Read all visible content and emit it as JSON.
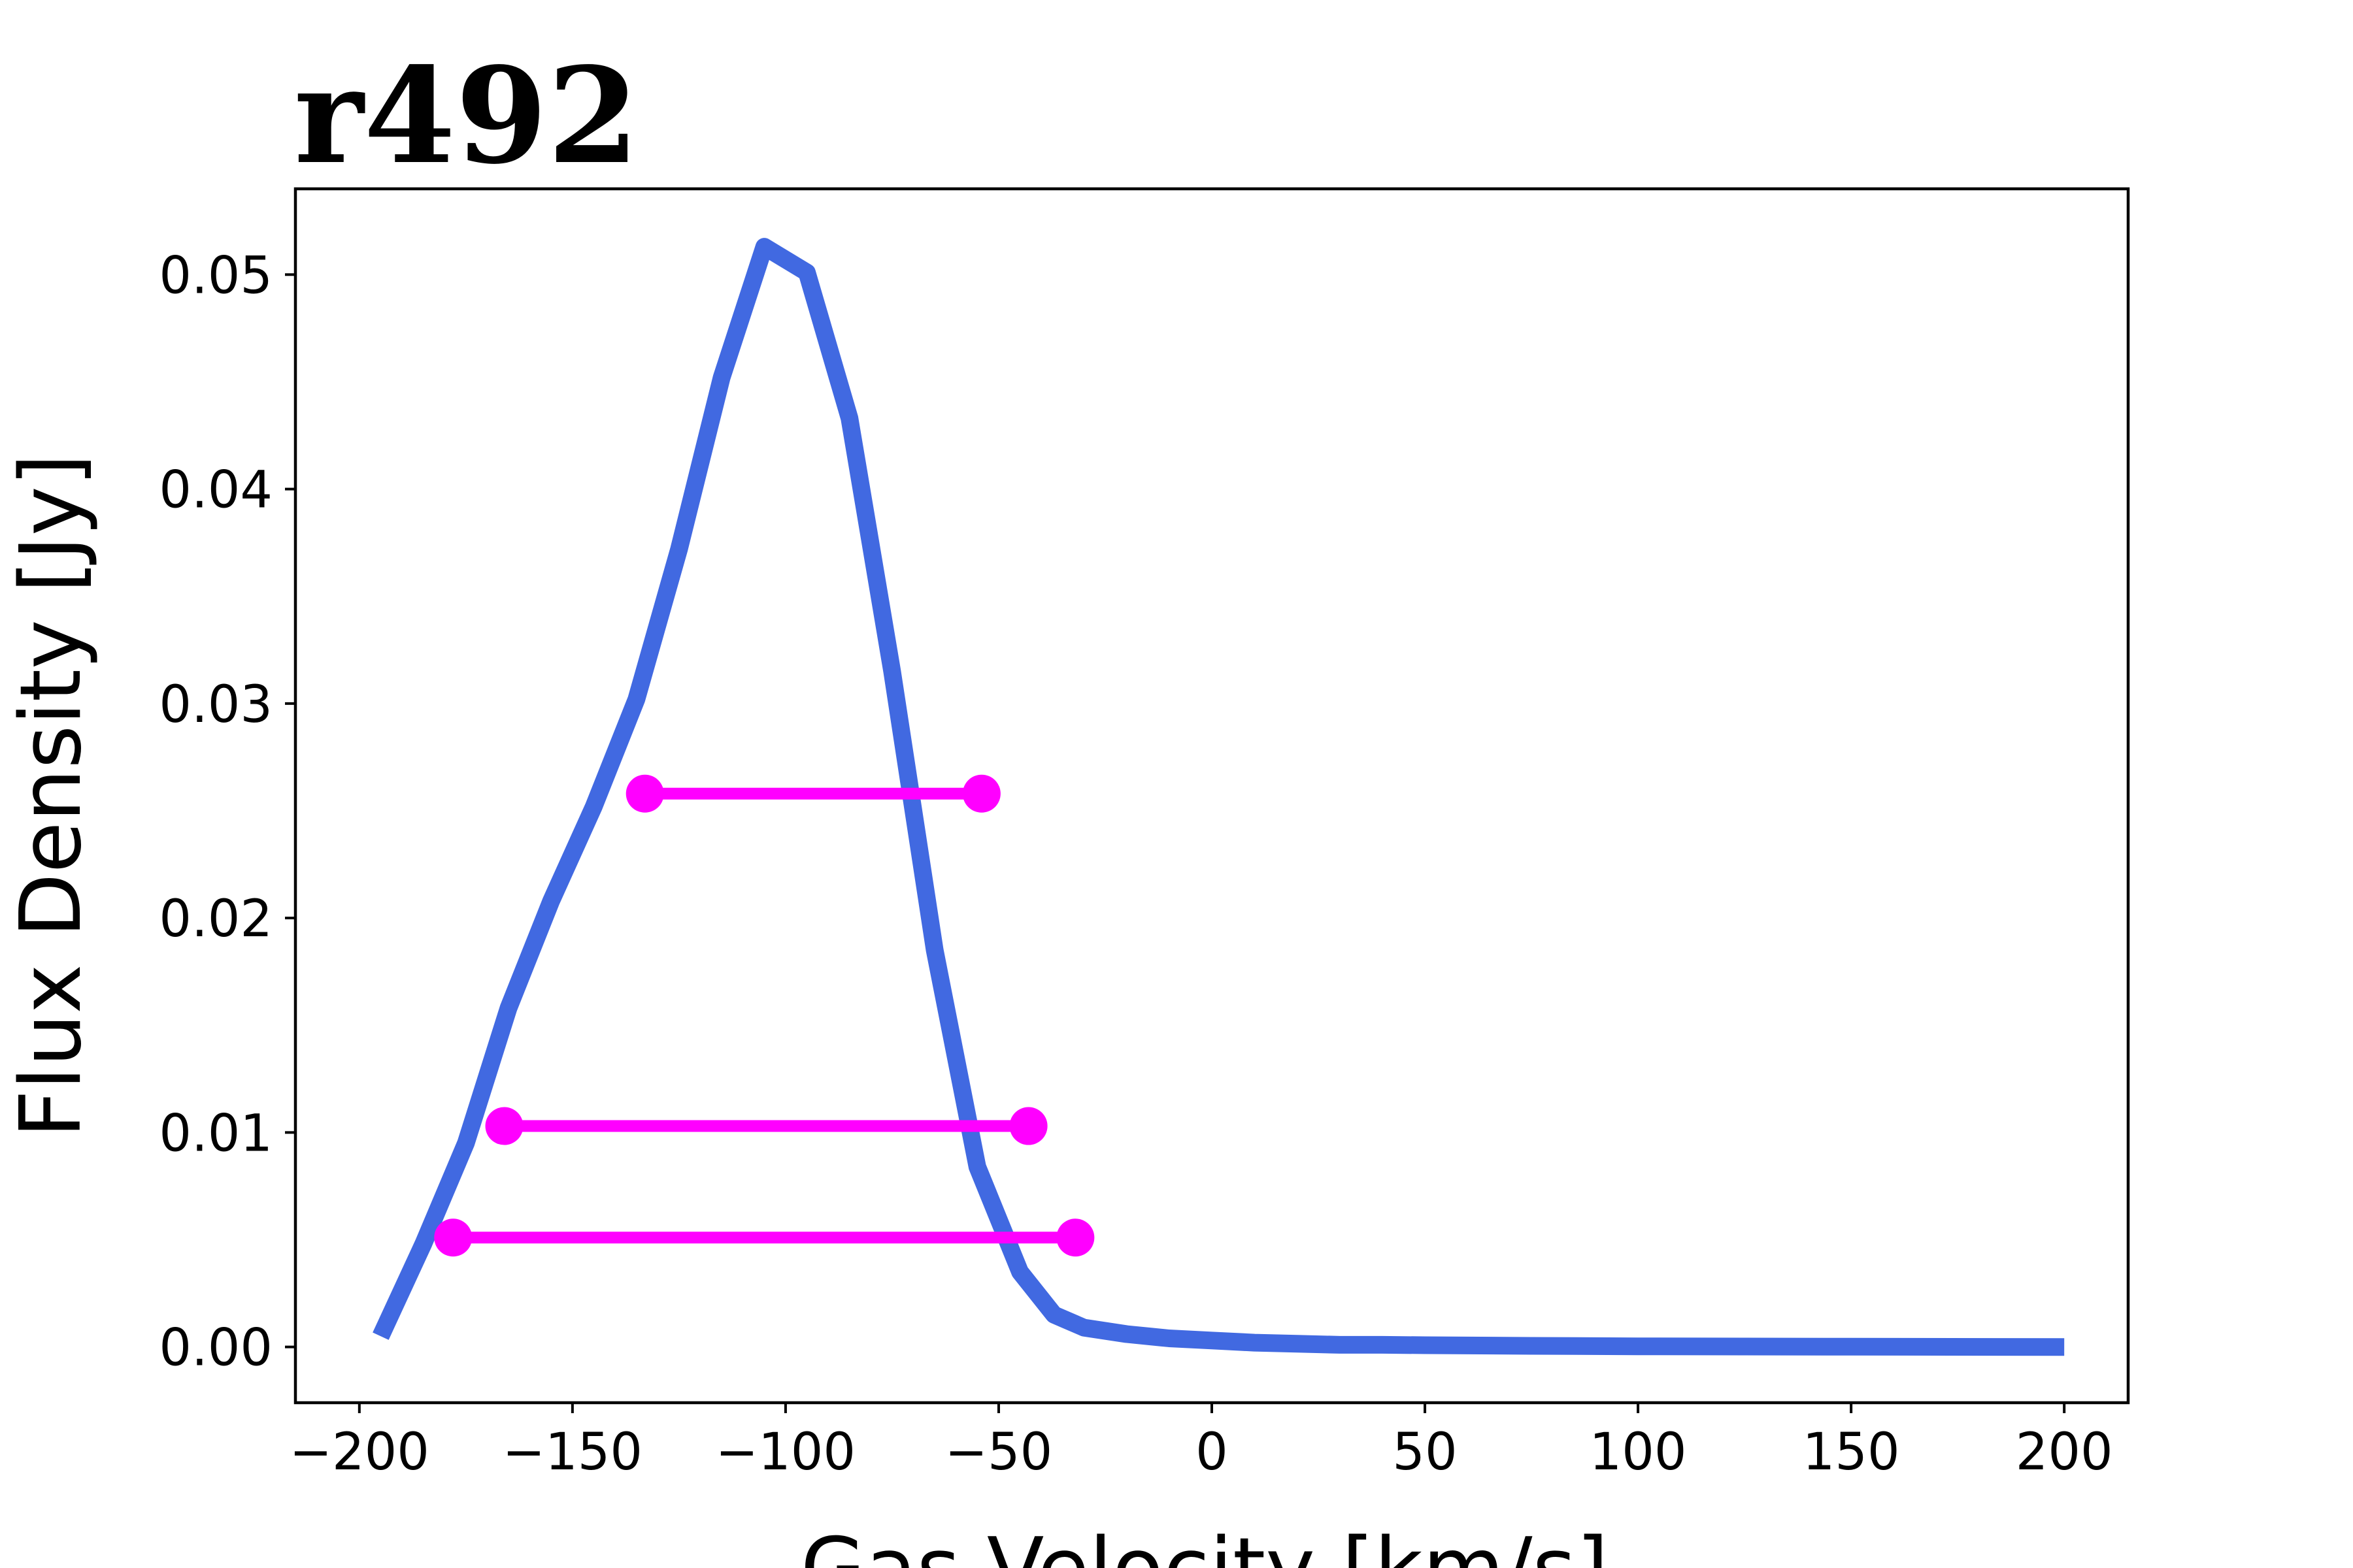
{
  "chart_data": {
    "type": "line",
    "title": "r492",
    "xlabel": "Gas Velocity [km/s]",
    "ylabel": "Flux Density [Jy]",
    "xlim": [
      -215,
      215
    ],
    "ylim": [
      -0.0026,
      0.054
    ],
    "xticks": [
      -200,
      -150,
      -100,
      -50,
      0,
      50,
      100,
      150,
      200
    ],
    "xtick_labels": [
      "−200",
      "−150",
      "−100",
      "−50",
      "0",
      "50",
      "100",
      "150",
      "200"
    ],
    "yticks": [
      0.0,
      0.01,
      0.02,
      0.03,
      0.04,
      0.05
    ],
    "ytick_labels": [
      "0.00",
      "0.01",
      "0.02",
      "0.03",
      "0.04",
      "0.05"
    ],
    "grid": false,
    "colors": {
      "line": "#4169E1",
      "markers": "#FF00FF"
    },
    "series": [
      {
        "x": [
          -195,
          -185,
          -175,
          -165,
          -155,
          -145,
          -135,
          -125,
          -115,
          -105,
          -95,
          -85,
          -75,
          -65,
          -55,
          -45,
          -37,
          -30,
          -20,
          -10,
          0,
          10,
          20,
          30,
          40,
          50,
          75,
          100,
          150,
          200
        ],
        "values": [
          0.0005,
          0.0048,
          0.0095,
          0.0158,
          0.0208,
          0.0252,
          0.0302,
          0.0372,
          0.0452,
          0.0513,
          0.0501,
          0.0433,
          0.0315,
          0.0185,
          0.0084,
          0.0035,
          0.0015,
          0.0009,
          0.0006,
          0.0004,
          0.0003,
          0.0002,
          0.00015,
          0.0001,
          0.0001,
          8e-05,
          5e-05,
          3e-05,
          1e-05,
          0.0
        ]
      }
    ],
    "width_markers": [
      {
        "y": 0.0258,
        "x1": -133,
        "x2": -54
      },
      {
        "y": 0.0103,
        "x1": -166,
        "x2": -43
      },
      {
        "y": 0.0051,
        "x1": -178,
        "x2": -32
      }
    ]
  }
}
